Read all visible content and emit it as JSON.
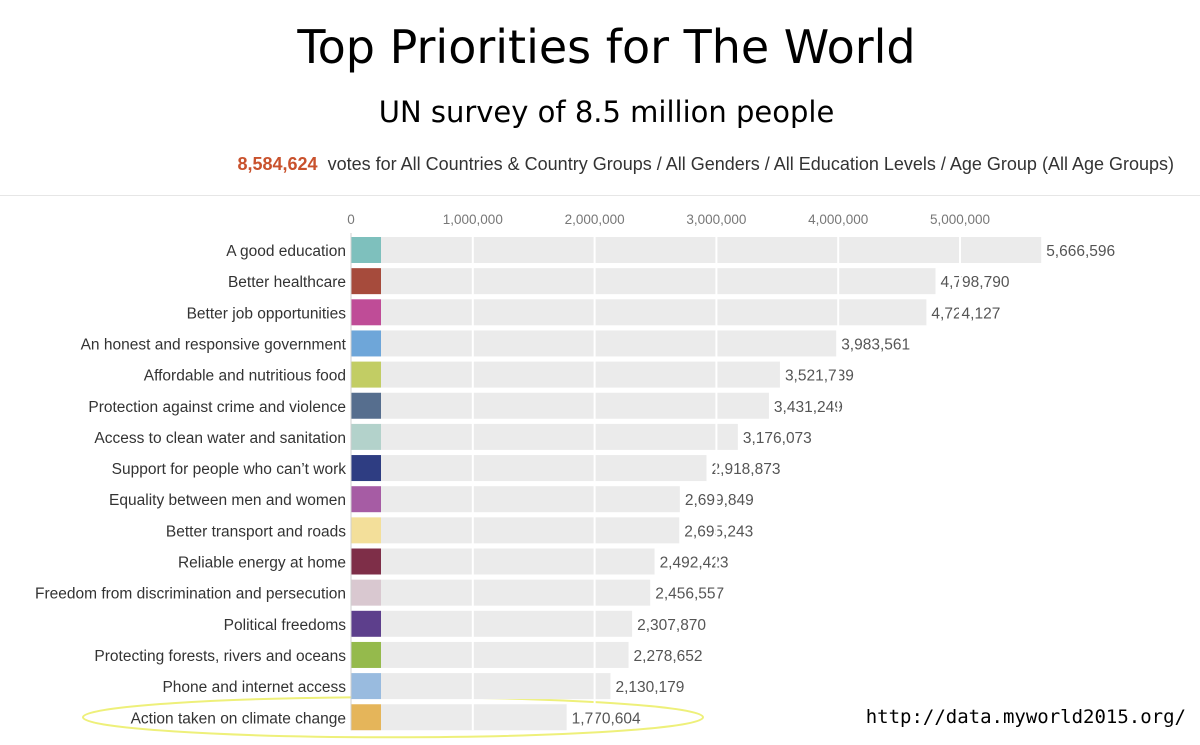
{
  "header": {
    "title": "Top Priorities for The World",
    "subtitle": "UN survey of 8.5 million people"
  },
  "summary": {
    "votes": "8,584,624",
    "votes_text": "votes for All Countries & Country Groups / All Genders / All Education Levels / Age Group (All Age Groups)"
  },
  "source": "http://data.myworld2015.org/",
  "colors": {
    "accent": "#c9522d",
    "bar_background": "#ebebeb",
    "highlight_ellipse": "#eef07a"
  },
  "chart_data": {
    "type": "bar",
    "orientation": "horizontal",
    "title": "Top Priorities for The World",
    "subtitle": "UN survey of 8.5 million people",
    "xlim": [
      0,
      5800000
    ],
    "x_ticks": [
      {
        "value": 0,
        "label": "0"
      },
      {
        "value": 1000000,
        "label": "1,000,000"
      },
      {
        "value": 2000000,
        "label": "2,000,000"
      },
      {
        "value": 3000000,
        "label": "3,000,000"
      },
      {
        "value": 4000000,
        "label": "4,000,000"
      },
      {
        "value": 5000000,
        "label": "5,000,000"
      }
    ],
    "categories": [
      "A good education",
      "Better healthcare",
      "Better job opportunities",
      "An honest and responsive government",
      "Affordable and nutritious food",
      "Protection against crime and violence",
      "Access to clean water and sanitation",
      "Support for people who can’t work",
      "Equality between men and women",
      "Better transport and roads",
      "Reliable energy at home",
      "Freedom from discrimination and persecution",
      "Political freedoms",
      "Protecting forests, rivers and oceans",
      "Phone and internet access",
      "Action taken on climate change"
    ],
    "values": [
      5666596,
      4798790,
      4724127,
      3983561,
      3521739,
      3431249,
      3176073,
      2918873,
      2699849,
      2695243,
      2492423,
      2456557,
      2307870,
      2278652,
      2130179,
      1770604
    ],
    "value_labels": [
      "5,666,596",
      "4,798,790",
      "4,724,127",
      "3,983,561",
      "3,521,739",
      "3,431,249",
      "3,176,073",
      "2,918,873",
      "2,699,849",
      "2,695,243",
      "2,492,423",
      "2,456,557",
      "2,307,870",
      "2,278,652",
      "2,130,179",
      "1,770,604"
    ],
    "swatch_colors": [
      "#7ec0bd",
      "#a64b3c",
      "#bf4c97",
      "#6ea6d9",
      "#c2cd64",
      "#566e8e",
      "#b3d2cb",
      "#2e3d82",
      "#a65ca4",
      "#f3df9a",
      "#7e2e48",
      "#d9c8d0",
      "#5d3f8c",
      "#95ba4c",
      "#99bbdf",
      "#e5b55a"
    ],
    "highlighted_category": "Action taken on climate change"
  }
}
